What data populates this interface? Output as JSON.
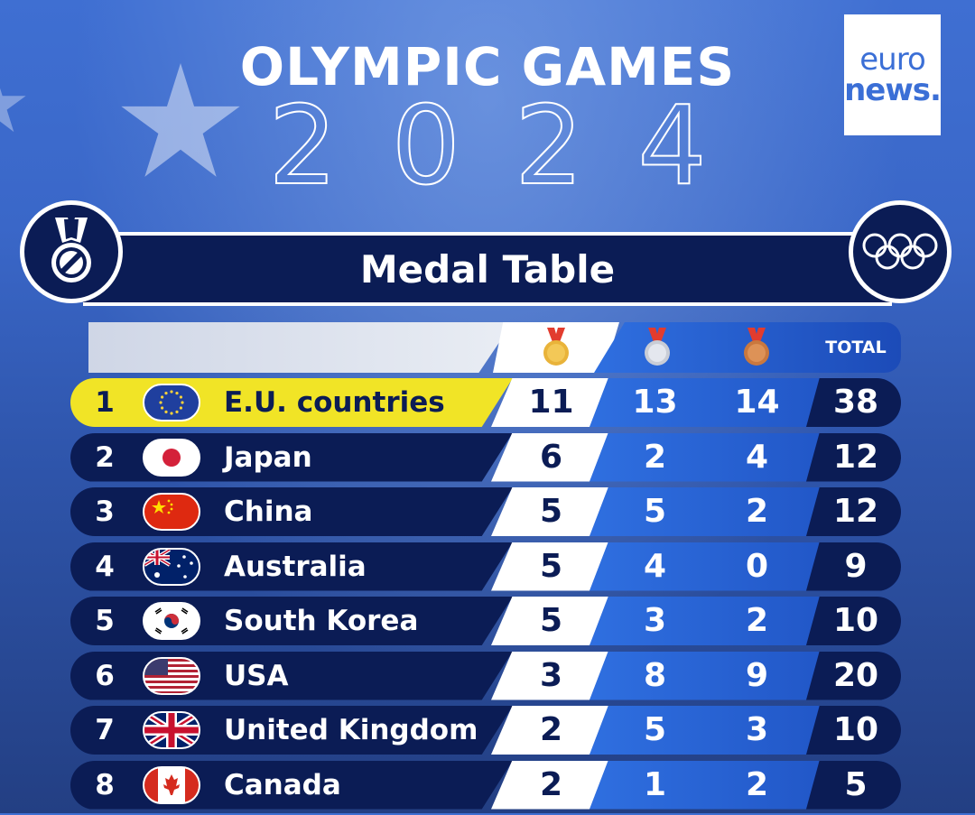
{
  "header": {
    "title_line1": "OLYMPIC GAMES",
    "title_line2": "2024",
    "logo_top": "euro",
    "logo_bottom": "news."
  },
  "banner": {
    "title": "Medal Table"
  },
  "table": {
    "columns": {
      "total": "TOTAL"
    },
    "rows": [
      {
        "rank": "1",
        "country": "E.U. countries",
        "gold": "11",
        "silver": "13",
        "bronze": "14",
        "total": "38",
        "flag": "eu-flag"
      },
      {
        "rank": "2",
        "country": "Japan",
        "gold": "6",
        "silver": "2",
        "bronze": "4",
        "total": "12",
        "flag": "japan-flag"
      },
      {
        "rank": "3",
        "country": "China",
        "gold": "5",
        "silver": "5",
        "bronze": "2",
        "total": "12",
        "flag": "china-flag"
      },
      {
        "rank": "4",
        "country": "Australia",
        "gold": "5",
        "silver": "4",
        "bronze": "0",
        "total": "9",
        "flag": "australia-flag"
      },
      {
        "rank": "5",
        "country": "South Korea",
        "gold": "5",
        "silver": "3",
        "bronze": "2",
        "total": "10",
        "flag": "south-korea-flag"
      },
      {
        "rank": "6",
        "country": "USA",
        "gold": "3",
        "silver": "8",
        "bronze": "9",
        "total": "20",
        "flag": "usa-flag"
      },
      {
        "rank": "7",
        "country": "United Kingdom",
        "gold": "2",
        "silver": "5",
        "bronze": "3",
        "total": "10",
        "flag": "uk-flag"
      },
      {
        "rank": "8",
        "country": "Canada",
        "gold": "2",
        "silver": "1",
        "bronze": "2",
        "total": "5",
        "flag": "canada-flag"
      }
    ]
  },
  "colors": {
    "navy": "#0b1c55",
    "blue": "#2f6fe0",
    "highlight": "#f1e426",
    "gold": "#e9b33a",
    "silver": "#c9cdd6",
    "bronze": "#c9783e"
  }
}
